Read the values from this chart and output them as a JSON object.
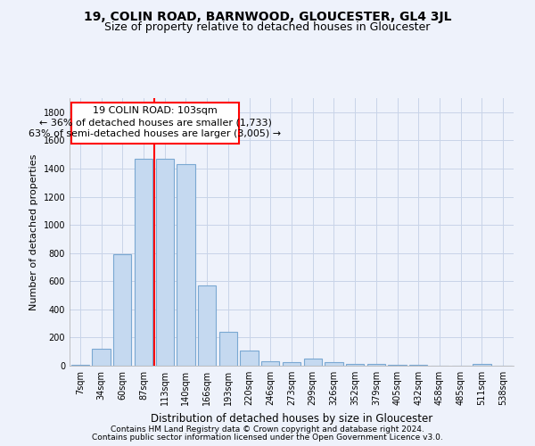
{
  "title": "19, COLIN ROAD, BARNWOOD, GLOUCESTER, GL4 3JL",
  "subtitle": "Size of property relative to detached houses in Gloucester",
  "xlabel": "Distribution of detached houses by size in Gloucester",
  "ylabel": "Number of detached properties",
  "categories": [
    "7sqm",
    "34sqm",
    "60sqm",
    "87sqm",
    "113sqm",
    "140sqm",
    "166sqm",
    "193sqm",
    "220sqm",
    "246sqm",
    "273sqm",
    "299sqm",
    "326sqm",
    "352sqm",
    "379sqm",
    "405sqm",
    "432sqm",
    "458sqm",
    "485sqm",
    "511sqm",
    "538sqm"
  ],
  "values": [
    5,
    120,
    790,
    1470,
    1470,
    1430,
    570,
    240,
    110,
    30,
    25,
    50,
    25,
    15,
    10,
    5,
    5,
    3,
    3,
    15,
    3
  ],
  "bar_color": "#c5d9f0",
  "bar_edge_color": "#7aa8d2",
  "red_line_index": 3.5,
  "annotation_title": "19 COLIN ROAD: 103sqm",
  "annotation_line1": "← 36% of detached houses are smaller (1,733)",
  "annotation_line2": "63% of semi-detached houses are larger (3,005) →",
  "ylim": [
    0,
    1900
  ],
  "yticks": [
    0,
    200,
    400,
    600,
    800,
    1000,
    1200,
    1400,
    1600,
    1800
  ],
  "footer_line1": "Contains HM Land Registry data © Crown copyright and database right 2024.",
  "footer_line2": "Contains public sector information licensed under the Open Government Licence v3.0.",
  "bg_color": "#eef2fb",
  "grid_color": "#c8d4e8",
  "title_fontsize": 10,
  "subtitle_fontsize": 9,
  "annotation_fontsize": 8,
  "tick_fontsize": 7,
  "xlabel_fontsize": 8.5,
  "ylabel_fontsize": 8,
  "footer_fontsize": 6.5
}
